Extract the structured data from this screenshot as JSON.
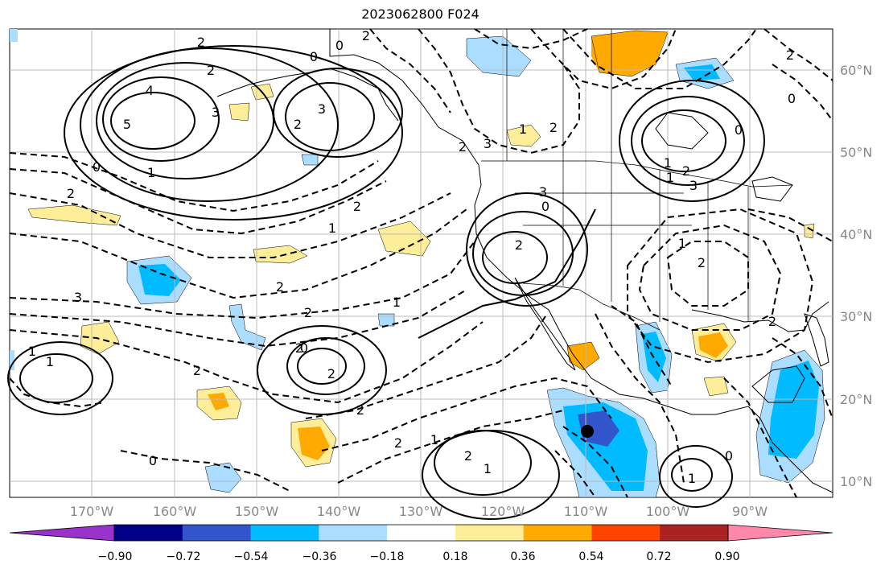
{
  "title": "2023062800 F024",
  "latitude_labels": [
    "60°N",
    "50°N",
    "40°N",
    "30°N",
    "20°N",
    "10°N"
  ],
  "longitude_labels": [
    "170°W",
    "160°W",
    "150°W",
    "140°W",
    "130°W",
    "120°W",
    "110°W",
    "100°W",
    "90°W"
  ],
  "colorbar": {
    "labels": [
      "−0.90",
      "−0.72",
      "−0.54",
      "−0.36",
      "−0.18",
      "0.18",
      "0.36",
      "0.54",
      "0.72",
      "0.90"
    ],
    "colors": [
      "#9933cc",
      "#000088",
      "#3355cc",
      "#00bbff",
      "#aaddff",
      "#ffffff",
      "#ffee99",
      "#ffaa00",
      "#ff4400",
      "#aa2222",
      "#ff88aa"
    ]
  },
  "contour_labels": [
    "4",
    "5",
    "3",
    "2",
    "2",
    "3",
    "2",
    "0",
    "0",
    "2",
    "1",
    "0",
    "2",
    "2",
    "1",
    "2",
    "3",
    "2",
    "1",
    "2",
    "2",
    "0",
    "2",
    "2",
    "2",
    "3",
    "1",
    "2",
    "3",
    "0",
    "2",
    "1",
    "2",
    "1",
    "3",
    "2",
    "1",
    "2",
    "0",
    "2",
    "0",
    "1",
    "1",
    "0",
    "2",
    "1",
    "2",
    "1",
    "2",
    "1",
    "0"
  ]
}
